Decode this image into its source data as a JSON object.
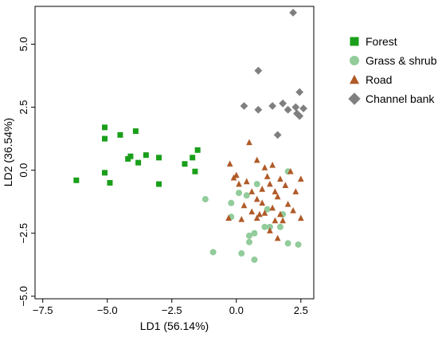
{
  "chart_data": {
    "type": "scatter",
    "title": "",
    "xlabel": "LD1 (56.14%)",
    "ylabel": "LD2 (36.54%)",
    "xlim": [
      -7.8,
      3.0
    ],
    "ylim": [
      -5.1,
      6.5
    ],
    "xticks": [
      -7.5,
      -5.0,
      -2.5,
      0.0,
      2.5
    ],
    "xtick_labels": [
      "−7.5",
      "−5.0",
      "−2.5",
      "0.0",
      "2.5"
    ],
    "yticks": [
      -5.0,
      -2.5,
      0.0,
      2.5,
      5.0
    ],
    "ytick_labels": [
      "−5.0",
      "−2.5",
      "0.0",
      "2.5",
      "5.0"
    ],
    "grid": false,
    "legend_position": "right",
    "series": [
      {
        "name": "Forest",
        "marker": "square",
        "color": "#1a9f1a",
        "points": [
          [
            -6.2,
            -0.4
          ],
          [
            -5.1,
            1.7
          ],
          [
            -5.1,
            1.25
          ],
          [
            -5.1,
            -0.1
          ],
          [
            -4.9,
            -0.5
          ],
          [
            -4.5,
            1.4
          ],
          [
            -4.2,
            0.45
          ],
          [
            -4.1,
            0.55
          ],
          [
            -3.9,
            1.55
          ],
          [
            -3.8,
            0.3
          ],
          [
            -3.5,
            0.6
          ],
          [
            -3.0,
            0.5
          ],
          [
            -3.0,
            -0.55
          ],
          [
            -2.0,
            0.25
          ],
          [
            -1.7,
            0.5
          ],
          [
            -1.6,
            -0.05
          ],
          [
            -1.5,
            0.8
          ]
        ]
      },
      {
        "name": "Grass & shrub",
        "marker": "circle",
        "color": "#92cc9b",
        "points": [
          [
            -1.2,
            -1.15
          ],
          [
            -0.9,
            -3.25
          ],
          [
            -0.2,
            -1.3
          ],
          [
            -0.2,
            -1.85
          ],
          [
            0.1,
            -0.9
          ],
          [
            0.2,
            -3.3
          ],
          [
            0.4,
            -1.0
          ],
          [
            0.5,
            -2.85
          ],
          [
            0.5,
            -2.6
          ],
          [
            0.7,
            -3.55
          ],
          [
            0.8,
            -0.55
          ],
          [
            0.7,
            -2.5
          ],
          [
            1.1,
            -2.25
          ],
          [
            1.3,
            -2.25
          ],
          [
            1.2,
            -1.55
          ],
          [
            1.8,
            -1.75
          ],
          [
            2.0,
            -0.05
          ],
          [
            2.0,
            -2.9
          ],
          [
            2.4,
            -2.95
          ],
          [
            1.7,
            -2.25
          ]
        ]
      },
      {
        "name": "Road",
        "marker": "triangle",
        "color": "#b05a28",
        "points": [
          [
            -0.25,
            0.25
          ],
          [
            -0.1,
            -0.3
          ],
          [
            0.1,
            -0.55
          ],
          [
            0.4,
            -0.45
          ],
          [
            0.6,
            -0.85
          ],
          [
            0.8,
            -1.15
          ],
          [
            1.0,
            -0.75
          ],
          [
            1.2,
            -0.25
          ],
          [
            1.3,
            -0.55
          ],
          [
            1.5,
            -0.85
          ],
          [
            1.6,
            -1.05
          ],
          [
            1.7,
            -0.35
          ],
          [
            1.9,
            -0.6
          ],
          [
            2.1,
            -0.05
          ],
          [
            2.3,
            -0.85
          ],
          [
            2.5,
            -0.35
          ],
          [
            0.3,
            -1.4
          ],
          [
            0.6,
            -1.65
          ],
          [
            0.8,
            -1.9
          ],
          [
            1.0,
            -1.3
          ],
          [
            1.1,
            -1.7
          ],
          [
            1.4,
            -1.5
          ],
          [
            1.7,
            -1.75
          ],
          [
            2.0,
            -1.35
          ],
          [
            2.2,
            -1.6
          ],
          [
            0.5,
            1.1
          ],
          [
            0.8,
            0.4
          ],
          [
            1.1,
            0.1
          ],
          [
            1.4,
            0.2
          ],
          [
            0.0,
            -0.2
          ],
          [
            -0.3,
            -1.9
          ],
          [
            0.2,
            -1.95
          ],
          [
            0.9,
            -1.75
          ],
          [
            1.5,
            -2.0
          ],
          [
            1.8,
            -2.0
          ],
          [
            2.5,
            -1.9
          ],
          [
            1.3,
            -2.4
          ],
          [
            1.6,
            -2.7
          ]
        ]
      },
      {
        "name": "Channel bank",
        "marker": "diamond",
        "color": "#7f7f7f",
        "points": [
          [
            2.2,
            6.25
          ],
          [
            0.85,
            3.95
          ],
          [
            2.45,
            3.1
          ],
          [
            0.3,
            2.55
          ],
          [
            1.4,
            2.55
          ],
          [
            1.8,
            2.65
          ],
          [
            2.0,
            2.4
          ],
          [
            2.3,
            2.5
          ],
          [
            2.6,
            2.45
          ],
          [
            2.35,
            2.25
          ],
          [
            2.45,
            2.15
          ],
          [
            0.85,
            2.4
          ],
          [
            1.6,
            1.4
          ]
        ]
      }
    ]
  }
}
